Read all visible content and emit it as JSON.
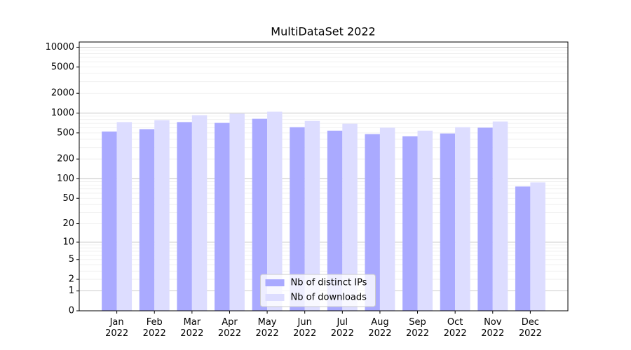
{
  "chart_data": {
    "type": "bar",
    "title": "MultiDataSet 2022",
    "categories": [
      "Jan\n2022",
      "Feb\n2022",
      "Mar\n2022",
      "Apr\n2022",
      "May\n2022",
      "Jun\n2022",
      "Jul\n2022",
      "Aug\n2022",
      "Sep\n2022",
      "Oct\n2022",
      "Nov\n2022",
      "Dec\n2022"
    ],
    "series": [
      {
        "name": "Nb of distinct IPs",
        "color": "#aaaaff",
        "values": [
          525,
          570,
          730,
          710,
          820,
          610,
          540,
          480,
          445,
          490,
          600,
          76
        ]
      },
      {
        "name": "Nb of downloads",
        "color": "#ddddff",
        "values": [
          730,
          780,
          930,
          980,
          1050,
          760,
          690,
          600,
          540,
          610,
          745,
          88
        ]
      }
    ],
    "yscale": "log1p",
    "ylim": [
      0,
      12000
    ],
    "yticks": [
      0,
      1,
      2,
      5,
      10,
      20,
      50,
      100,
      200,
      500,
      1000,
      2000,
      5000,
      10000
    ],
    "grid": true,
    "legend": "lower center"
  }
}
